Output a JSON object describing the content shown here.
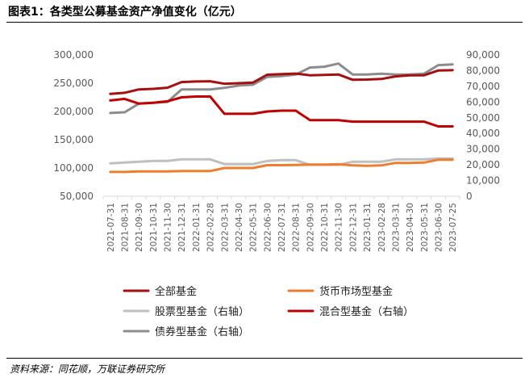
{
  "header": {
    "title": "图表1：各类型公募基金资产净值变化（亿元）"
  },
  "footer": {
    "source": "资料来源：同花顺，万联证券研究所"
  },
  "colors": {
    "all_funds": "#A50F0F",
    "money_market": "#ED7D31",
    "stock": "#BFBFBF",
    "mixed": "#C00000",
    "bond": "#8C8C8C",
    "axis": "#D9D9D9",
    "tick": "#595959"
  },
  "chart_data": {
    "type": "line",
    "x": [
      "2021-07-31",
      "2021-08-31",
      "2021-09-30",
      "2021-10-31",
      "2021-11-30",
      "2021-12-31",
      "2022-01-31",
      "2022-02-28",
      "2022-03-31",
      "2022-04-30",
      "2022-05-31",
      "2022-06-30",
      "2022-07-31",
      "2022-08-31",
      "2022-09-30",
      "2022-10-31",
      "2022-11-30",
      "2022-12-31",
      "2023-01-31",
      "2023-02-28",
      "2023-03-31",
      "2023-04-30",
      "2023-05-31",
      "2023-06-30",
      "2023-07-25"
    ],
    "left_axis": {
      "min": 50000,
      "max": 300000,
      "ticks": [
        "50,000",
        "100,000",
        "150,000",
        "200,000",
        "250,000",
        "300,000"
      ]
    },
    "right_axis": {
      "min": 0,
      "max": 90000,
      "ticks": [
        "0",
        "10,000",
        "20,000",
        "30,000",
        "40,000",
        "50,000",
        "60,000",
        "70,000",
        "80,000",
        "90,000"
      ]
    },
    "series": [
      {
        "name": "全部基金",
        "axis": "left",
        "values": [
          231000,
          233000,
          239000,
          240000,
          242000,
          252000,
          253000,
          253500,
          249000,
          250000,
          251000,
          265000,
          266000,
          267000,
          264000,
          264500,
          265500,
          256000,
          256500,
          257500,
          262000,
          264000,
          264000,
          272500,
          273000
        ]
      },
      {
        "name": "货币市场型基金",
        "axis": "left",
        "values": [
          93000,
          93000,
          94000,
          94000,
          94000,
          94500,
          94500,
          94500,
          100000,
          100000,
          100000,
          105000,
          105000,
          105500,
          106000,
          106000,
          106500,
          104500,
          104000,
          104500,
          109000,
          109000,
          109500,
          114500,
          114500
        ]
      },
      {
        "name": "股票型基金（右轴）",
        "axis": "right",
        "values": [
          21000,
          21500,
          22000,
          22500,
          22500,
          23500,
          23500,
          23500,
          20500,
          20500,
          20500,
          22500,
          23000,
          23000,
          20000,
          20000,
          20000,
          22000,
          22000,
          22000,
          23500,
          23500,
          23500,
          24000,
          24000
        ]
      },
      {
        "name": "混合型基金（右轴）",
        "axis": "right",
        "values": [
          61000,
          62000,
          59000,
          59500,
          60500,
          63000,
          63500,
          63500,
          52500,
          52500,
          52500,
          54000,
          54500,
          54500,
          48500,
          48500,
          48500,
          47500,
          47500,
          47500,
          47500,
          47500,
          47500,
          44500,
          44500
        ]
      },
      {
        "name": "债券型基金（右轴）",
        "axis": "right",
        "values": [
          53000,
          53500,
          59000,
          59500,
          60000,
          68000,
          68000,
          68000,
          69000,
          70500,
          71000,
          76000,
          76500,
          77500,
          82000,
          82500,
          84500,
          77500,
          77500,
          78000,
          77500,
          77500,
          78000,
          83500,
          84000
        ]
      }
    ]
  }
}
